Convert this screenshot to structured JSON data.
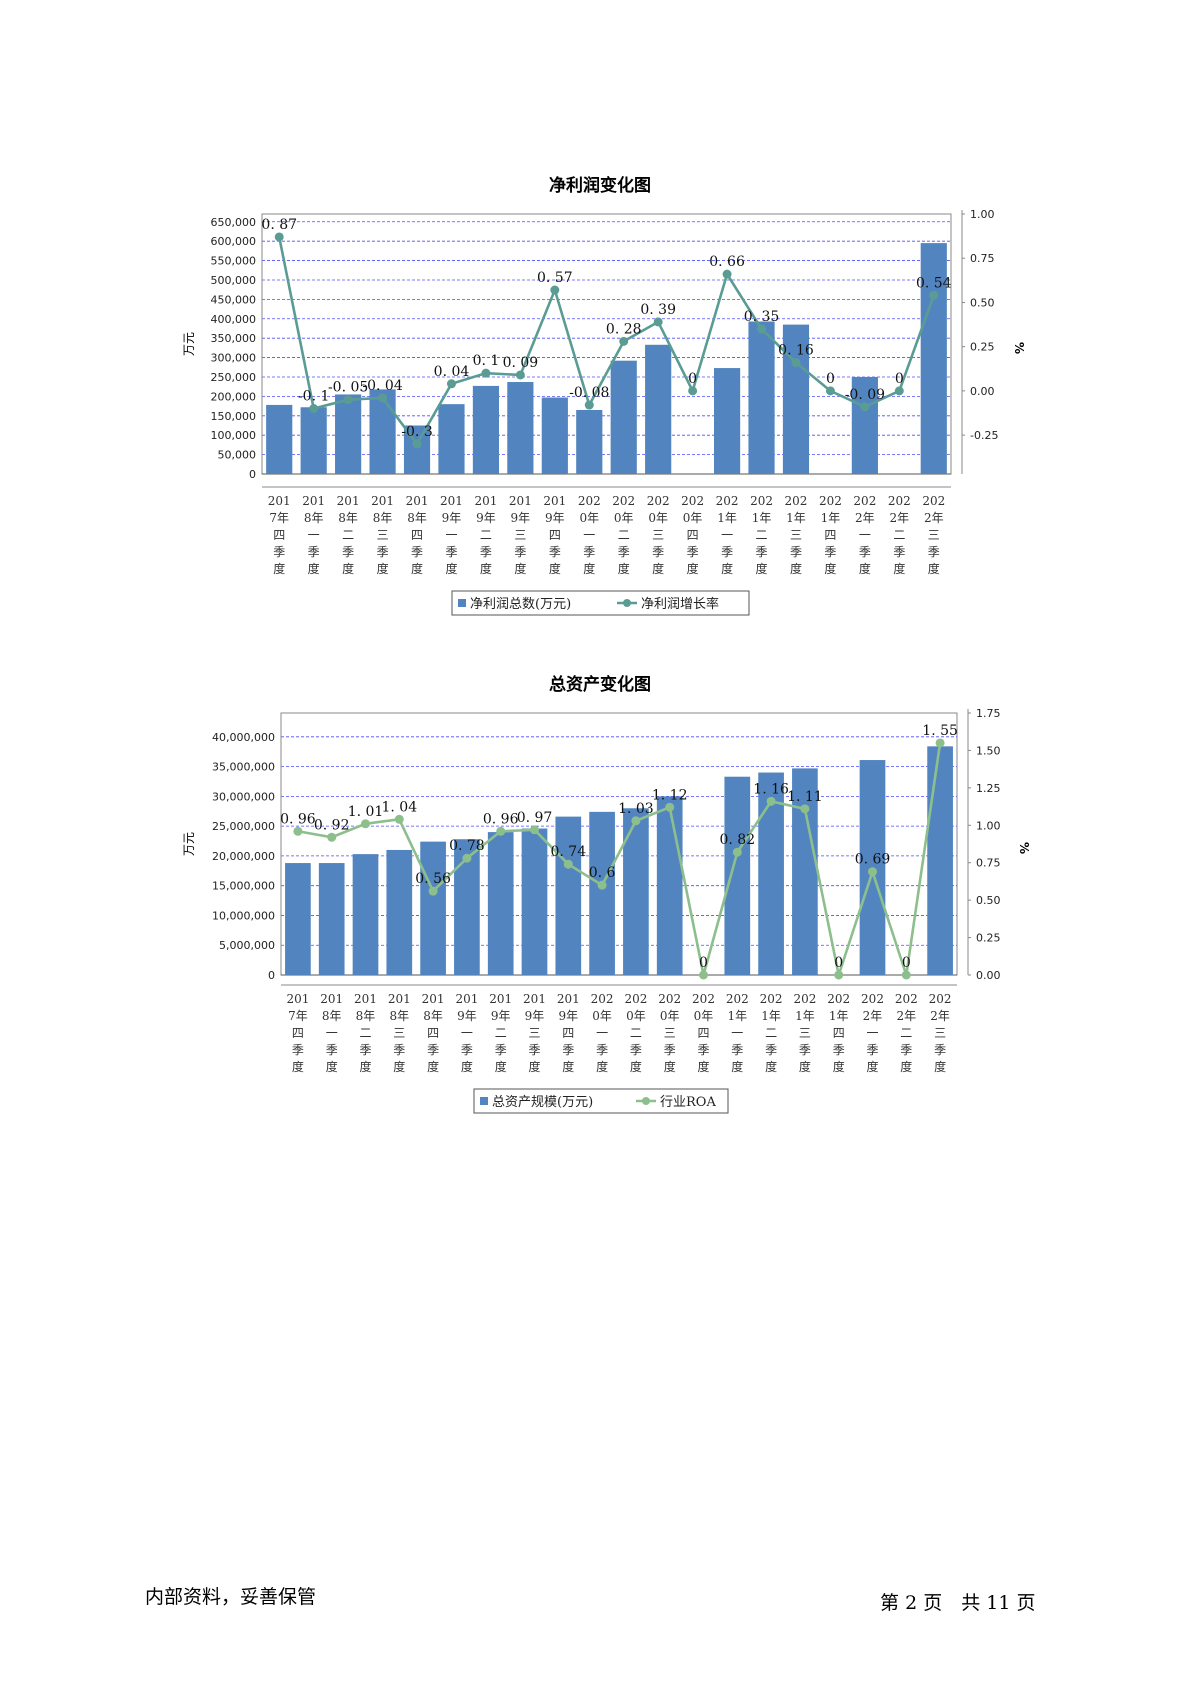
{
  "footer": {
    "confidential": "内部资料，妥善保管",
    "page_prefix": "第",
    "page_current": "2",
    "page_mid": "页　共",
    "page_total": "11",
    "page_suffix": "页"
  },
  "chart_data": [
    {
      "type": "bar",
      "title": "净利润变化图",
      "ylabel_left": "万元",
      "ylabel_right": "%",
      "categories": [
        [
          "201",
          "7年",
          "四",
          "季",
          "度"
        ],
        [
          "201",
          "8年",
          "一",
          "季",
          "度"
        ],
        [
          "201",
          "8年",
          "二",
          "季",
          "度"
        ],
        [
          "201",
          "8年",
          "三",
          "季",
          "度"
        ],
        [
          "201",
          "8年",
          "四",
          "季",
          "度"
        ],
        [
          "201",
          "9年",
          "一",
          "季",
          "度"
        ],
        [
          "201",
          "9年",
          "二",
          "季",
          "度"
        ],
        [
          "201",
          "9年",
          "三",
          "季",
          "度"
        ],
        [
          "201",
          "9年",
          "四",
          "季",
          "度"
        ],
        [
          "202",
          "0年",
          "一",
          "季",
          "度"
        ],
        [
          "202",
          "0年",
          "二",
          "季",
          "度"
        ],
        [
          "202",
          "0年",
          "三",
          "季",
          "度"
        ],
        [
          "202",
          "0年",
          "四",
          "季",
          "度"
        ],
        [
          "202",
          "1年",
          "一",
          "季",
          "度"
        ],
        [
          "202",
          "1年",
          "二",
          "季",
          "度"
        ],
        [
          "202",
          "1年",
          "三",
          "季",
          "度"
        ],
        [
          "202",
          "1年",
          "四",
          "季",
          "度"
        ],
        [
          "202",
          "2年",
          "一",
          "季",
          "度"
        ],
        [
          "202",
          "2年",
          "二",
          "季",
          "度"
        ],
        [
          "202",
          "2年",
          "三",
          "季",
          "度"
        ]
      ],
      "bar_series": {
        "name": "净利润总数(万元)",
        "color": "#5285bf",
        "values": [
          178000,
          172000,
          205000,
          218000,
          125000,
          180000,
          227000,
          237000,
          197000,
          165000,
          292000,
          333000,
          0,
          273000,
          393000,
          385000,
          0,
          250000,
          0,
          595000
        ]
      },
      "line_series": {
        "name": "净利润增长率",
        "color": "#5a9c94",
        "values": [
          0.87,
          -0.1,
          -0.05,
          -0.04,
          -0.3,
          0.04,
          0.1,
          0.09,
          0.57,
          -0.08,
          0.28,
          0.39,
          0,
          0.66,
          0.35,
          0.16,
          0,
          -0.09,
          0,
          0.54
        ],
        "labels": [
          "0. 87",
          "-0. 1",
          "-0. 05",
          "-0. 04",
          "-0. 3",
          "0. 04",
          "0. 1",
          "0. 09",
          "0. 57",
          "-0. 08",
          "0. 28",
          "0. 39",
          "0",
          "0. 66",
          "0. 35",
          "0. 16",
          "0",
          "-0. 09",
          "0",
          "0. 54"
        ]
      },
      "left_ticks": [
        "0",
        "50,000",
        "100,000",
        "150,000",
        "200,000",
        "250,000",
        "300,000",
        "350,000",
        "400,000",
        "450,000",
        "500,000",
        "550,000",
        "600,000",
        "650,000"
      ],
      "left_tick_values": [
        0,
        50000,
        100000,
        150000,
        200000,
        250000,
        300000,
        350000,
        400000,
        450000,
        500000,
        550000,
        600000,
        650000
      ],
      "left_max": 670000,
      "right_ticks": [
        "-0.25",
        "0.00",
        "0.25",
        "0.50",
        "0.75",
        "1.00"
      ],
      "right_tick_values": [
        -0.25,
        0,
        0.25,
        0.5,
        0.75,
        1.0
      ],
      "right_range": [
        -0.47,
        1.0
      ],
      "legend": "bottom",
      "grid": true
    },
    {
      "type": "bar",
      "title": "总资产变化图",
      "ylabel_left": "万元",
      "ylabel_right": "%",
      "categories": [
        [
          "201",
          "7年",
          "四",
          "季",
          "度"
        ],
        [
          "201",
          "8年",
          "一",
          "季",
          "度"
        ],
        [
          "201",
          "8年",
          "二",
          "季",
          "度"
        ],
        [
          "201",
          "8年",
          "三",
          "季",
          "度"
        ],
        [
          "201",
          "8年",
          "四",
          "季",
          "度"
        ],
        [
          "201",
          "9年",
          "一",
          "季",
          "度"
        ],
        [
          "201",
          "9年",
          "二",
          "季",
          "度"
        ],
        [
          "201",
          "9年",
          "三",
          "季",
          "度"
        ],
        [
          "201",
          "9年",
          "四",
          "季",
          "度"
        ],
        [
          "202",
          "0年",
          "一",
          "季",
          "度"
        ],
        [
          "202",
          "0年",
          "二",
          "季",
          "度"
        ],
        [
          "202",
          "0年",
          "三",
          "季",
          "度"
        ],
        [
          "202",
          "0年",
          "四",
          "季",
          "度"
        ],
        [
          "202",
          "1年",
          "一",
          "季",
          "度"
        ],
        [
          "202",
          "1年",
          "二",
          "季",
          "度"
        ],
        [
          "202",
          "1年",
          "三",
          "季",
          "度"
        ],
        [
          "202",
          "1年",
          "四",
          "季",
          "度"
        ],
        [
          "202",
          "2年",
          "一",
          "季",
          "度"
        ],
        [
          "202",
          "2年",
          "二",
          "季",
          "度"
        ],
        [
          "202",
          "2年",
          "三",
          "季",
          "度"
        ]
      ],
      "bar_series": {
        "name": "总资产规模(万元)",
        "color": "#5285bf",
        "values": [
          18800000,
          18800000,
          20300000,
          21000000,
          22400000,
          22800000,
          24000000,
          24600000,
          26600000,
          27400000,
          28000000,
          30000000,
          0,
          33300000,
          34000000,
          34700000,
          0,
          36100000,
          0,
          38400000
        ]
      },
      "line_series": {
        "name": "行业ROA",
        "color": "#8dbf8d",
        "values": [
          0.96,
          0.92,
          1.01,
          1.04,
          0.56,
          0.78,
          0.96,
          0.97,
          0.74,
          0.6,
          1.03,
          1.12,
          0,
          0.82,
          1.16,
          1.11,
          0,
          0.69,
          0,
          1.55
        ],
        "labels": [
          "0. 96",
          "0. 92",
          "1. 01",
          "1. 04",
          "0. 56",
          "0. 78",
          "0. 96",
          "0. 97",
          "0. 74",
          "0. 6",
          "1. 03",
          "1. 12",
          "0",
          "0. 82",
          "1. 16",
          "1. 11",
          "0",
          "0. 69",
          "0",
          "1. 55"
        ]
      },
      "left_ticks": [
        "0",
        "5,000,000",
        "10,000,000",
        "15,000,000",
        "20,000,000",
        "25,000,000",
        "30,000,000",
        "35,000,000",
        "40,000,000"
      ],
      "left_tick_values": [
        0,
        5000000,
        10000000,
        15000000,
        20000000,
        25000000,
        30000000,
        35000000,
        40000000
      ],
      "left_max": 44000000,
      "right_ticks": [
        "0.00",
        "0.25",
        "0.50",
        "0.75",
        "1.00",
        "1.25",
        "1.50",
        "1.75"
      ],
      "right_tick_values": [
        0,
        0.25,
        0.5,
        0.75,
        1.0,
        1.25,
        1.5,
        1.75
      ],
      "right_range": [
        0,
        1.75
      ],
      "legend": "bottom",
      "grid": true
    }
  ]
}
